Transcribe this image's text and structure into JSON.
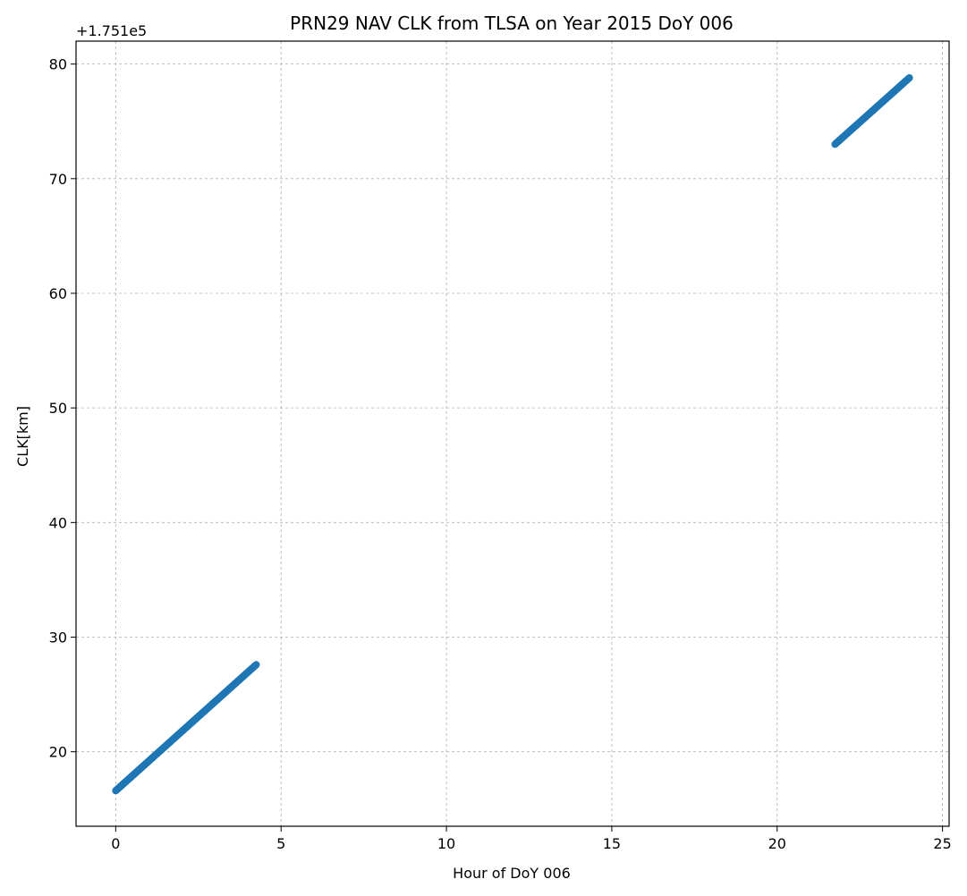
{
  "chart_data": {
    "type": "scatter",
    "title": "PRN29 NAV CLK from TLSA on Year 2015 DoY 006",
    "xlabel": "Hour of DoY 006",
    "ylabel": "CLK[km]",
    "y_offset_label": "+1.751e5",
    "xlim": [
      -1.2,
      25.2
    ],
    "ylim": [
      13.5,
      82
    ],
    "xticks": [
      0,
      5,
      10,
      15,
      20,
      25
    ],
    "yticks": [
      20,
      30,
      40,
      50,
      60,
      70,
      80
    ],
    "grid": true,
    "marker_color": "#1f77b4",
    "series": [
      {
        "segments": [
          {
            "x_start": 0.0,
            "x_end": 4.25,
            "y_start": 16.6,
            "y_end": 27.6
          },
          {
            "x_start": 21.75,
            "x_end": 24.0,
            "y_start": 73.0,
            "y_end": 78.8
          }
        ]
      }
    ]
  }
}
